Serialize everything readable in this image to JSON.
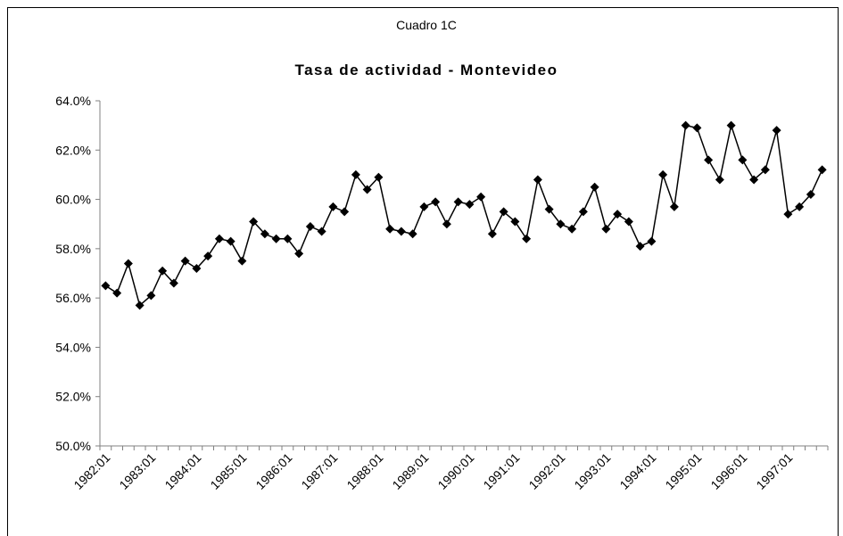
{
  "chart_data": {
    "type": "line",
    "subtitle": "Cuadro 1C",
    "title": "Tasa de actividad - Montevideo",
    "categories": [
      "1982:01",
      null,
      null,
      null,
      "1983:01",
      null,
      null,
      null,
      "1984:01",
      null,
      null,
      null,
      "1985:01",
      null,
      null,
      null,
      "1986:01",
      null,
      null,
      null,
      "1987:01",
      null,
      null,
      null,
      "1988:01",
      null,
      null,
      null,
      "1989:01",
      null,
      null,
      null,
      "1990:01",
      null,
      null,
      null,
      "1991:01",
      null,
      null,
      null,
      "1992:01",
      null,
      null,
      null,
      "1993:01",
      null,
      null,
      null,
      "1994:01",
      null,
      null,
      null,
      "1995:01",
      null,
      null,
      null,
      "1996:01",
      null,
      null,
      null,
      "1997:01",
      null,
      null,
      null
    ],
    "series": [
      {
        "name": "Tasa de actividad",
        "color": "#000000",
        "values": [
          56.5,
          56.2,
          57.4,
          55.7,
          56.1,
          57.1,
          56.6,
          57.5,
          57.2,
          57.7,
          58.4,
          58.3,
          57.5,
          59.1,
          58.6,
          58.4,
          58.4,
          57.8,
          58.9,
          58.7,
          59.7,
          59.5,
          61.0,
          60.4,
          60.9,
          58.8,
          58.7,
          58.6,
          59.7,
          59.9,
          59.0,
          59.9,
          59.8,
          60.1,
          58.6,
          59.5,
          59.1,
          58.4,
          60.8,
          59.6,
          59.0,
          58.8,
          59.5,
          60.5,
          58.8,
          59.4,
          59.1,
          58.1,
          58.3,
          61.0,
          59.7,
          63.0,
          62.9,
          61.6,
          60.8,
          63.0,
          61.6,
          60.8,
          61.2,
          62.8,
          59.4,
          59.7,
          60.2,
          61.2
        ]
      }
    ],
    "ylim": [
      50,
      64
    ],
    "yticks": [
      {
        "value": 50,
        "label": "50.0%"
      },
      {
        "value": 52,
        "label": "52.0%"
      },
      {
        "value": 54,
        "label": "54.0%"
      },
      {
        "value": 56,
        "label": "56.0%"
      },
      {
        "value": 58,
        "label": "58.0%"
      },
      {
        "value": 60,
        "label": "60.0%"
      },
      {
        "value": 62,
        "label": "62.0%"
      },
      {
        "value": 64,
        "label": "64.0%"
      }
    ],
    "grid": false
  }
}
